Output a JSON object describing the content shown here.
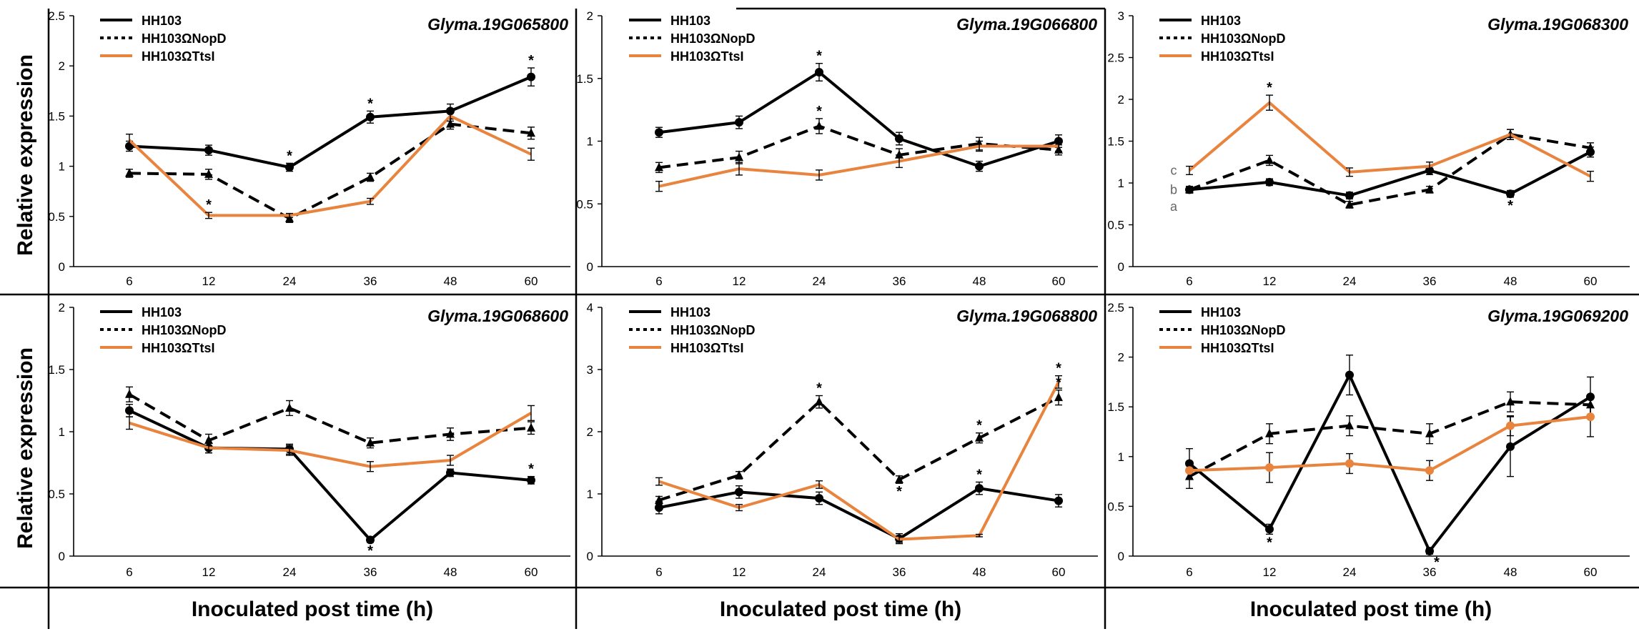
{
  "colors": {
    "hh103": "#000000",
    "nopd": "#000000",
    "ttsl": "#E8843E",
    "letters": "#666666"
  },
  "y_axis_label": "Relative expression",
  "x_axis_label": "Inoculated post time (h)",
  "chart_data": [
    {
      "type": "line",
      "title": "Glyma.19G065800",
      "categories": [
        "6",
        "12",
        "24",
        "36",
        "48",
        "60"
      ],
      "ylim": [
        0,
        2.5
      ],
      "yticks": [
        "0",
        "0.5",
        "1",
        "1.5",
        "2",
        "2.5"
      ],
      "legend": [
        "HH103",
        "HH103ΩNopD",
        "HH103ΩTtsI"
      ],
      "series": [
        {
          "name": "HH103",
          "style": "solid",
          "marker": "circle",
          "values": [
            1.2,
            1.16,
            0.99,
            1.49,
            1.55,
            1.89
          ],
          "errors": [
            0.05,
            0.05,
            0.04,
            0.06,
            0.07,
            0.09
          ],
          "stars": [
            false,
            false,
            true,
            true,
            false,
            true
          ]
        },
        {
          "name": "HH103ΩNopD",
          "style": "dashed",
          "marker": "triangle",
          "values": [
            0.93,
            0.92,
            0.48,
            0.89,
            1.42,
            1.33
          ],
          "errors": [
            0.04,
            0.05,
            0.04,
            0.04,
            0.05,
            0.06
          ],
          "stars": [
            false,
            false,
            false,
            false,
            false,
            false
          ]
        },
        {
          "name": "HH103ΩTtsI",
          "style": "orange",
          "marker": "none",
          "values": [
            1.26,
            0.51,
            0.51,
            0.65,
            1.5,
            1.12
          ],
          "errors": [
            0.06,
            0.03,
            0.02,
            0.03,
            0.05,
            0.06
          ],
          "stars": [
            false,
            true,
            false,
            false,
            false,
            false
          ]
        }
      ]
    },
    {
      "type": "line",
      "title": "Glyma.19G066800",
      "categories": [
        "6",
        "12",
        "24",
        "36",
        "48",
        "60"
      ],
      "ylim": [
        0,
        2
      ],
      "yticks": [
        "0",
        "0.5",
        "1",
        "1.5",
        "2"
      ],
      "legend": [
        "HH103",
        "HH103ΩNopD",
        "HH103ΩTtsI"
      ],
      "series": [
        {
          "name": "HH103",
          "style": "solid",
          "marker": "circle",
          "values": [
            1.07,
            1.15,
            1.55,
            1.02,
            0.8,
            1.0
          ],
          "errors": [
            0.04,
            0.05,
            0.07,
            0.05,
            0.04,
            0.05
          ],
          "stars": [
            false,
            false,
            true,
            false,
            false,
            false
          ]
        },
        {
          "name": "HH103ΩNopD",
          "style": "dashed",
          "marker": "triangle",
          "values": [
            0.79,
            0.87,
            1.12,
            0.89,
            0.98,
            0.93
          ],
          "errors": [
            0.04,
            0.05,
            0.06,
            0.05,
            0.05,
            0.04
          ],
          "stars": [
            false,
            false,
            true,
            false,
            false,
            false
          ]
        },
        {
          "name": "HH103ΩTtsI",
          "style": "orange",
          "marker": "none",
          "values": [
            0.64,
            0.78,
            0.73,
            0.84,
            0.96,
            0.96
          ],
          "errors": [
            0.04,
            0.05,
            0.04,
            0.05,
            0.04,
            0.04
          ],
          "stars": [
            false,
            false,
            false,
            false,
            false,
            false
          ]
        }
      ]
    },
    {
      "type": "line",
      "title": "Glyma.19G068300",
      "categories": [
        "6",
        "12",
        "24",
        "36",
        "48",
        "60"
      ],
      "ylim": [
        0,
        3
      ],
      "yticks": [
        "0",
        "0.5",
        "1",
        "1.5",
        "2",
        "2.5",
        "3"
      ],
      "legend": [
        "HH103",
        "HH103ΩNopD",
        "HH103ΩTtsI"
      ],
      "significance_letters": [
        "c",
        "b",
        "a"
      ],
      "series": [
        {
          "name": "HH103",
          "style": "solid",
          "marker": "circle",
          "values": [
            0.92,
            1.01,
            0.85,
            1.15,
            0.87,
            1.37
          ],
          "errors": [
            0.04,
            0.04,
            0.04,
            0.05,
            0.04,
            0.06
          ],
          "stars": [
            false,
            false,
            false,
            false,
            true,
            false
          ]
        },
        {
          "name": "HH103ΩNopD",
          "style": "dashed",
          "marker": "triangle",
          "values": [
            0.92,
            1.27,
            0.74,
            0.92,
            1.58,
            1.42
          ],
          "errors": [
            0.04,
            0.06,
            0.04,
            0.04,
            0.06,
            0.06
          ],
          "stars": [
            false,
            false,
            false,
            false,
            false,
            false
          ]
        },
        {
          "name": "HH103ΩTtsI",
          "style": "orange",
          "marker": "none",
          "values": [
            1.15,
            1.96,
            1.13,
            1.2,
            1.58,
            1.08
          ],
          "errors": [
            0.05,
            0.09,
            0.05,
            0.05,
            0.06,
            0.06
          ],
          "stars": [
            false,
            true,
            false,
            false,
            false,
            false
          ]
        }
      ]
    },
    {
      "type": "line",
      "title": "Glyma.19G068600",
      "categories": [
        "6",
        "12",
        "24",
        "36",
        "48",
        "60"
      ],
      "ylim": [
        0,
        2
      ],
      "yticks": [
        "0",
        "0.5",
        "1",
        "1.5",
        "2"
      ],
      "legend": [
        "HH103",
        "HH103ΩNopD",
        "HH103ΩTtsI"
      ],
      "series": [
        {
          "name": "HH103",
          "style": "solid",
          "marker": "circle",
          "values": [
            1.17,
            0.87,
            0.86,
            0.13,
            0.67,
            0.61
          ],
          "errors": [
            0.05,
            0.04,
            0.04,
            0.02,
            0.03,
            0.03
          ],
          "stars": [
            false,
            false,
            false,
            true,
            false,
            true
          ]
        },
        {
          "name": "HH103ΩNopD",
          "style": "dashed",
          "marker": "triangle",
          "values": [
            1.3,
            0.93,
            1.19,
            0.91,
            0.98,
            1.03
          ],
          "errors": [
            0.06,
            0.05,
            0.06,
            0.04,
            0.05,
            0.05
          ],
          "stars": [
            false,
            false,
            false,
            false,
            false,
            false
          ]
        },
        {
          "name": "HH103ΩTtsI",
          "style": "orange",
          "marker": "none",
          "values": [
            1.07,
            0.87,
            0.85,
            0.72,
            0.77,
            1.15
          ],
          "errors": [
            0.05,
            0.04,
            0.04,
            0.04,
            0.04,
            0.06
          ],
          "stars": [
            false,
            false,
            false,
            false,
            false,
            false
          ]
        }
      ]
    },
    {
      "type": "line",
      "title": "Glyma.19G068800",
      "categories": [
        "6",
        "12",
        "24",
        "36",
        "48",
        "60"
      ],
      "ylim": [
        0,
        4
      ],
      "yticks": [
        "0",
        "1",
        "2",
        "3",
        "4"
      ],
      "legend": [
        "HH103",
        "HH103ΩNopD",
        "HH103ΩTtsI"
      ],
      "series": [
        {
          "name": "HH103",
          "style": "solid",
          "marker": "circle",
          "values": [
            0.78,
            1.03,
            0.93,
            0.28,
            1.09,
            0.89
          ],
          "errors": [
            0.1,
            0.1,
            0.1,
            0.08,
            0.1,
            0.1
          ],
          "stars": [
            false,
            false,
            false,
            false,
            true,
            false
          ]
        },
        {
          "name": "HH103ΩNopD",
          "style": "dashed",
          "marker": "triangle",
          "values": [
            0.9,
            1.3,
            2.48,
            1.23,
            1.9,
            2.55
          ],
          "errors": [
            0.06,
            0.06,
            0.1,
            0.06,
            0.08,
            0.12
          ],
          "stars": [
            false,
            false,
            true,
            true,
            true,
            true
          ]
        },
        {
          "name": "HH103ΩTtsI",
          "style": "orange",
          "marker": "none",
          "values": [
            1.2,
            0.78,
            1.15,
            0.27,
            0.33,
            2.8
          ],
          "errors": [
            0.06,
            0.05,
            0.06,
            0.05,
            0.02,
            0.1
          ],
          "stars": [
            false,
            false,
            false,
            false,
            false,
            true
          ]
        }
      ]
    },
    {
      "type": "line",
      "title": "Glyma.19G069200",
      "categories": [
        "6",
        "12",
        "24",
        "36",
        "48",
        "60"
      ],
      "ylim": [
        0,
        2.5
      ],
      "yticks": [
        "0",
        "0.5",
        "1",
        "1.5",
        "2",
        "2.5"
      ],
      "legend": [
        "HH103",
        "HH103ΩNopD",
        "HH103ΩTtsI"
      ],
      "series": [
        {
          "name": "HH103",
          "style": "solid",
          "marker": "circle",
          "values": [
            0.93,
            0.27,
            1.82,
            0.05,
            1.1,
            1.6
          ],
          "errors": [
            0.15,
            0.05,
            0.2,
            0.03,
            0.3,
            0.2
          ],
          "stars": [
            false,
            true,
            false,
            true,
            false,
            false
          ]
        },
        {
          "name": "HH103ΩNopD",
          "style": "dashed",
          "marker": "triangle",
          "values": [
            0.8,
            1.23,
            1.31,
            1.23,
            1.55,
            1.52
          ],
          "errors": [
            0.12,
            0.1,
            0.1,
            0.1,
            0.1,
            0.1
          ],
          "stars": [
            false,
            false,
            false,
            false,
            false,
            false
          ]
        },
        {
          "name": "HH103ΩTtsI",
          "style": "orange",
          "marker": "circle",
          "values": [
            0.86,
            0.89,
            0.93,
            0.86,
            1.31,
            1.4
          ],
          "errors": [
            0.08,
            0.15,
            0.1,
            0.1,
            0.1,
            0.2
          ],
          "stars": [
            false,
            false,
            false,
            false,
            false,
            false
          ]
        }
      ]
    }
  ]
}
